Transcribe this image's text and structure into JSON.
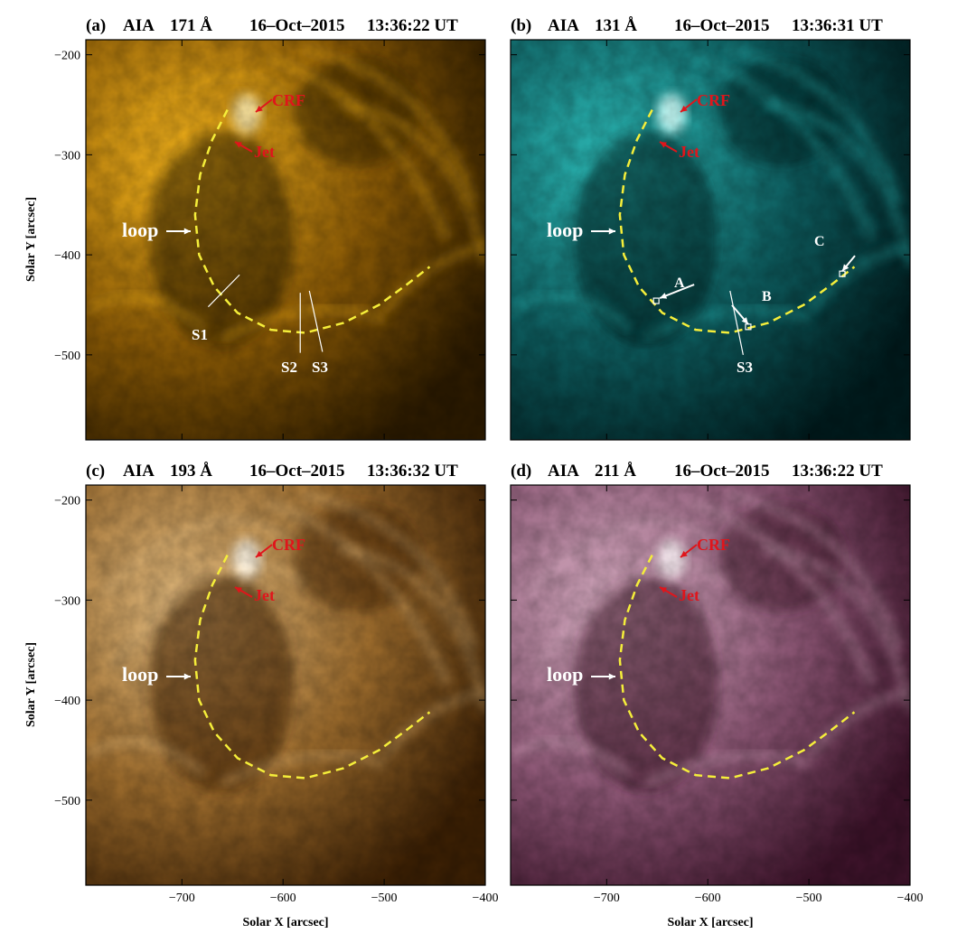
{
  "figure": {
    "panels": [
      {
        "id": "a",
        "tag": "(a)",
        "instrument": "AIA",
        "wavelength": "171 Å",
        "date": "16–Oct–2015",
        "time": "13:36:22 UT",
        "colors": {
          "dark": "#2b1a00",
          "mid": "#8a5a06",
          "bright": "#f2b21c",
          "glow": "#ffe9a6"
        },
        "labels": {
          "crf": "CRF",
          "jet": "Jet",
          "loop": "loop",
          "s1": "S1",
          "s2": "S2",
          "s3": "S3"
        }
      },
      {
        "id": "b",
        "tag": "(b)",
        "instrument": "AIA",
        "wavelength": "131 Å",
        "date": "16–Oct–2015",
        "time": "13:36:31 UT",
        "colors": {
          "dark": "#011a1c",
          "mid": "#0d5a5c",
          "bright": "#2bb6b3",
          "glow": "#c8fbf7"
        },
        "labels": {
          "crf": "CRF",
          "jet": "Jet",
          "loop": "loop",
          "a": "A",
          "b": "B",
          "c": "C",
          "s3": "S3"
        }
      },
      {
        "id": "c",
        "tag": "(c)",
        "instrument": "AIA",
        "wavelength": "193 Å",
        "date": "16–Oct–2015",
        "time": "13:36:32 UT",
        "colors": {
          "dark": "#3a1f04",
          "mid": "#9a6a2c",
          "bright": "#dcb57a",
          "glow": "#fff5e2"
        },
        "labels": {
          "crf": "CRF",
          "jet": "Jet",
          "loop": "loop"
        }
      },
      {
        "id": "d",
        "tag": "(d)",
        "instrument": "AIA",
        "wavelength": "211 Å",
        "date": "16–Oct–2015",
        "time": "13:36:22 UT",
        "colors": {
          "dark": "#3a1228",
          "mid": "#8a5573",
          "bright": "#d2a8bd",
          "glow": "#fbeef4"
        },
        "labels": {
          "crf": "CRF",
          "jet": "Jet",
          "loop": "loop"
        }
      }
    ],
    "axes": {
      "x_label": "Solar X [arcsec]",
      "y_label": "Solar Y [arcsec]",
      "x_range": [
        -795,
        -400
      ],
      "y_range": [
        -585,
        -185
      ],
      "x_ticks": [
        -700,
        -600,
        -500,
        -400
      ],
      "y_ticks": [
        -200,
        -300,
        -400,
        -500
      ]
    },
    "dashed_loop": {
      "color": "#f5ee3a",
      "path_arcsec": [
        [
          -655,
          -255
        ],
        [
          -670,
          -285
        ],
        [
          -682,
          -320
        ],
        [
          -687,
          -360
        ],
        [
          -683,
          -400
        ],
        [
          -668,
          -432
        ],
        [
          -645,
          -458
        ],
        [
          -612,
          -475
        ],
        [
          -578,
          -478
        ],
        [
          -540,
          -468
        ],
        [
          -505,
          -450
        ],
        [
          -478,
          -430
        ],
        [
          -455,
          -412
        ]
      ]
    },
    "slit_lines_arcsec": {
      "S1": [
        [
          -643,
          -420
        ],
        [
          -674,
          -452
        ]
      ],
      "S2": [
        [
          -583,
          -438
        ],
        [
          -583,
          -498
        ]
      ],
      "S3": [
        [
          -574,
          -436
        ],
        [
          -561,
          -497
        ]
      ]
    },
    "points_arcsec": {
      "A": [
        -651,
        -446
      ],
      "B": [
        -560,
        -472
      ],
      "C": [
        -467,
        -419
      ]
    }
  }
}
